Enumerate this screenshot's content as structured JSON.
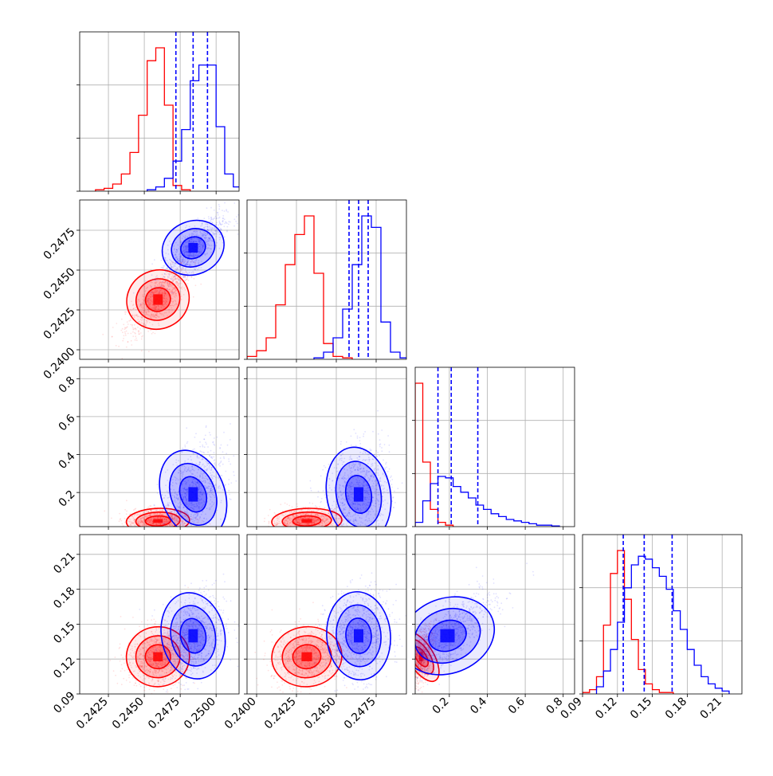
{
  "chart_data": {
    "type": "corner",
    "variables": [
      {
        "range": [
          0.2405,
          0.2516
        ],
        "ticks": [
          0.2425,
          0.245,
          0.2475,
          0.25
        ],
        "tick_labels": [
          "0.2425",
          "0.2450",
          "0.2475",
          "0.2500"
        ]
      },
      {
        "range": [
          0.2394,
          0.2494
        ],
        "ticks": [
          0.24,
          0.2425,
          0.245,
          0.2475
        ],
        "tick_labels": [
          "0.2400",
          "0.2425",
          "0.2450",
          "0.2475"
        ]
      },
      {
        "range": [
          0.02,
          0.86
        ],
        "ticks": [
          0.2,
          0.4,
          0.6,
          0.8
        ],
        "tick_labels": [
          "0.2",
          "0.4",
          "0.6",
          "0.8"
        ]
      },
      {
        "range": [
          0.09,
          0.227
        ],
        "ticks": [
          0.09,
          0.12,
          0.15,
          0.18,
          0.21
        ],
        "tick_labels": [
          "0.09",
          "0.12",
          "0.15",
          "0.18",
          "0.21"
        ]
      }
    ],
    "series": [
      {
        "color": "#ff0000",
        "histograms": [
          {
            "bins": [
              0.2416,
              0.2422,
              0.2428,
              0.2434,
              0.244,
              0.2446,
              0.2452,
              0.2458,
              0.2464,
              0.247,
              0.2476,
              0.2482
            ],
            "heights": [
              0.01,
              0.02,
              0.05,
              0.12,
              0.27,
              0.53,
              0.91,
              1.0,
              0.6,
              0.04,
              0.01
            ]
          },
          {
            "bins": [
              0.2394,
              0.24,
              0.2406,
              0.2412,
              0.2418,
              0.2424,
              0.243,
              0.2436,
              0.2442,
              0.2448,
              0.2454,
              0.246
            ],
            "heights": [
              0.02,
              0.06,
              0.15,
              0.38,
              0.66,
              0.87,
              1.0,
              0.6,
              0.11,
              0.02,
              0.01
            ]
          },
          {
            "bins": [
              0.02,
              0.06,
              0.1,
              0.14,
              0.18,
              0.22
            ],
            "heights": [
              1.0,
              0.45,
              0.12,
              0.03,
              0.01
            ]
          },
          {
            "bins": [
              0.09,
              0.096,
              0.102,
              0.108,
              0.114,
              0.12,
              0.126,
              0.132,
              0.138,
              0.144,
              0.15,
              0.156,
              0.162,
              0.168
            ],
            "heights": [
              0.01,
              0.03,
              0.12,
              0.48,
              0.84,
              1.0,
              0.66,
              0.38,
              0.17,
              0.07,
              0.03,
              0.01,
              0.01
            ]
          }
        ],
        "centers": [
          0.24595,
          0.24315,
          0.05,
          0.122
        ],
        "correlations": {
          "1-0": 0.78,
          "2-0": 0.15,
          "2-1": 0.15,
          "3-0": 0.2,
          "3-1": 0.2,
          "3-2": 0.55
        }
      },
      {
        "color": "#0000ff",
        "histograms": [
          {
            "bins": [
              0.2452,
              0.2458,
              0.2464,
              0.247,
              0.2476,
              0.2482,
              0.2488,
              0.2494,
              0.25,
              0.2506,
              0.2512,
              0.2518
            ],
            "heights": [
              0.01,
              0.03,
              0.09,
              0.21,
              0.43,
              0.77,
              0.88,
              0.88,
              0.45,
              0.12,
              0.03
            ]
          },
          {
            "bins": [
              0.2436,
              0.2442,
              0.2448,
              0.2454,
              0.246,
              0.2466,
              0.2472,
              0.2478,
              0.2484,
              0.249,
              0.2496
            ],
            "heights": [
              0.01,
              0.05,
              0.15,
              0.35,
              0.66,
              1.0,
              0.92,
              0.26,
              0.05,
              0.01
            ]
          },
          {
            "bins": [
              0.02,
              0.06,
              0.1,
              0.14,
              0.18,
              0.22,
              0.26,
              0.3,
              0.34,
              0.38,
              0.42,
              0.46,
              0.5,
              0.54,
              0.58,
              0.62,
              0.66,
              0.7,
              0.74,
              0.78
            ],
            "heights": [
              0.03,
              0.18,
              0.3,
              0.35,
              0.34,
              0.28,
              0.24,
              0.2,
              0.15,
              0.12,
              0.09,
              0.07,
              0.05,
              0.04,
              0.03,
              0.02,
              0.01,
              0.01,
              0.005
            ]
          },
          {
            "bins": [
              0.102,
              0.108,
              0.114,
              0.12,
              0.126,
              0.132,
              0.138,
              0.144,
              0.15,
              0.156,
              0.162,
              0.168,
              0.174,
              0.18,
              0.186,
              0.192,
              0.198,
              0.204,
              0.21,
              0.216
            ],
            "heights": [
              0.05,
              0.16,
              0.31,
              0.5,
              0.74,
              0.9,
              0.96,
              0.94,
              0.88,
              0.82,
              0.73,
              0.58,
              0.45,
              0.31,
              0.2,
              0.12,
              0.07,
              0.04,
              0.02
            ]
          }
        ],
        "centers": [
          0.2484,
          0.2464,
          0.19,
          0.14
        ],
        "quantiles": [
          [
            0.2472,
            0.2484,
            0.2494
          ],
          [
            0.2458,
            0.2464,
            0.247
          ],
          [
            0.14,
            0.21,
            0.35
          ],
          [
            0.125,
            0.143,
            0.167
          ]
        ],
        "correlations": {
          "1-0": 0.78,
          "2-0": 0.45,
          "2-1": 0.2,
          "3-0": 0.25,
          "3-1": 0.1,
          "3-2": 0.75
        }
      }
    ],
    "grid": true,
    "legend": "none"
  }
}
